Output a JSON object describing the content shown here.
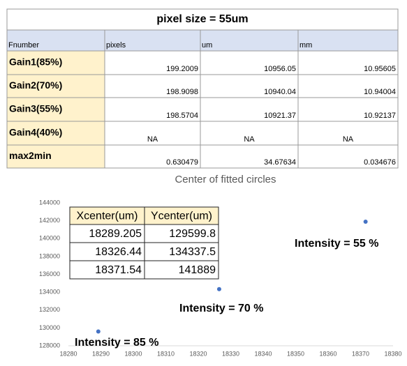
{
  "table": {
    "title": "pixel size = 55um",
    "columns": [
      "Fnumber",
      "pixels",
      "um",
      "mm"
    ],
    "rows": [
      [
        "Gain1(85%)",
        199.2009,
        10956.05,
        10.95605
      ],
      [
        "Gain2(70%)",
        198.9098,
        10940.04,
        10.94004
      ],
      [
        "Gain3(55%)",
        198.5704,
        10921.37,
        10.92137
      ],
      [
        "Gain4(40%)",
        "NA",
        "NA",
        "NA"
      ],
      [
        "max2min",
        0.630479,
        34.67634,
        0.034676
      ]
    ]
  },
  "chart_data": {
    "type": "scatter",
    "title": "Center of fitted circles",
    "x": [
      18289.205,
      18326.44,
      18371.54
    ],
    "y": [
      129599.8,
      134337.5,
      141889
    ],
    "color": "#4472c4",
    "xlim": [
      18280,
      18380
    ],
    "xticks": [
      18280,
      18290,
      18300,
      18310,
      18320,
      18330,
      18340,
      18350,
      18360,
      18370,
      18380
    ],
    "ylim": [
      128000,
      144000
    ],
    "yticks": [
      128000,
      130000,
      132000,
      134000,
      136000,
      138000,
      140000,
      142000,
      144000
    ],
    "grid": false,
    "annotations": [
      "Intensity = 85 %",
      "Intensity = 70 %",
      "Intensity = 55 %"
    ],
    "inset_table_headers": [
      "Xcenter(um)",
      "Ycenter(um)"
    ]
  }
}
